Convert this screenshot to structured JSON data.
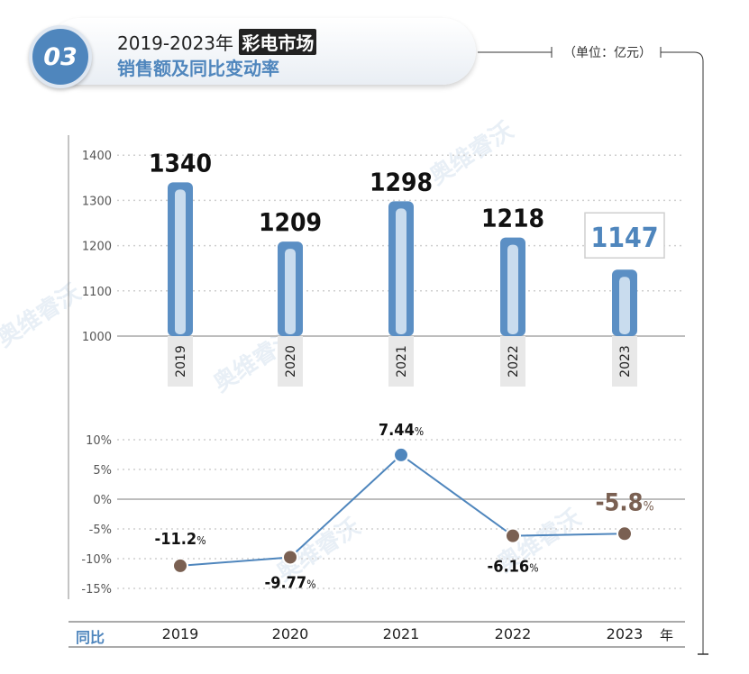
{
  "badge": "03",
  "title": {
    "line1_prefix": "2019-2023年",
    "line1_highlight": "彩电市场",
    "line2": "销售额及同比变动率"
  },
  "unit_label": "（单位：亿元）",
  "watermark": "奥维睿沃",
  "footer": {
    "label": "同比",
    "unit": "年"
  },
  "colors": {
    "accent": "#4f86bd",
    "bar": "#5b8fc4",
    "bar_inner": "#c9dcee",
    "negative": "#7a6052",
    "grid": "#cfcfcf"
  },
  "chart_data": [
    {
      "type": "bar",
      "categories": [
        "2019",
        "2020",
        "2021",
        "2022",
        "2023"
      ],
      "values": [
        1340,
        1209,
        1298,
        1218,
        1147
      ],
      "value_labels": [
        "1340",
        "1209",
        "1298",
        "1218",
        "1147"
      ],
      "highlight_index": 4,
      "ylim": [
        1000,
        1400
      ],
      "yticks": [
        1000,
        1100,
        1200,
        1300,
        1400
      ],
      "ytick_labels": [
        "1000",
        "1100",
        "1200",
        "1300",
        "1400"
      ],
      "grid": true
    },
    {
      "type": "line",
      "categories": [
        "2019",
        "2020",
        "2021",
        "2022",
        "2023"
      ],
      "values": [
        -11.2,
        -9.77,
        7.44,
        -6.16,
        -5.8
      ],
      "value_labels": [
        "-11.2",
        "-9.77",
        "7.44",
        "-6.16",
        "-5.8"
      ],
      "percent_sign": "%",
      "highlight_index": 4,
      "ylim": [
        -15,
        10
      ],
      "yticks": [
        10,
        5,
        0,
        -5,
        -10,
        -15
      ],
      "ytick_labels": [
        "10%",
        "5%",
        "0%",
        "-5%",
        "-10%",
        "-15%"
      ],
      "grid": true
    }
  ]
}
